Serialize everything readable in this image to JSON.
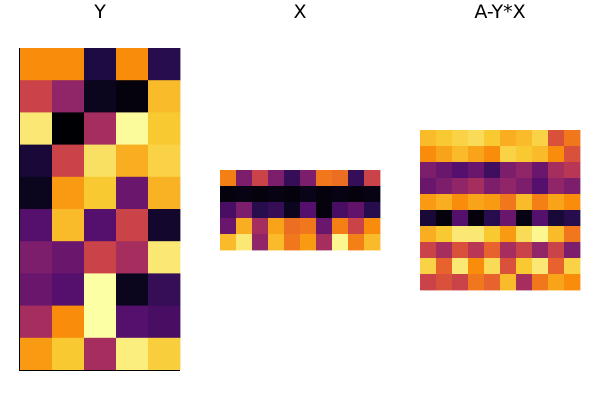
{
  "chart_data": [
    {
      "type": "heatmap",
      "title": "Y",
      "colormap": "inferno",
      "rows": 10,
      "cols": 5,
      "values": [
        [
          0.75,
          0.75,
          0.12,
          0.75,
          0.15
        ],
        [
          0.55,
          0.4,
          0.05,
          0.02,
          0.85
        ],
        [
          0.95,
          0.0,
          0.45,
          0.99,
          0.88
        ],
        [
          0.1,
          0.55,
          0.93,
          0.82,
          0.9
        ],
        [
          0.05,
          0.78,
          0.88,
          0.3,
          0.83
        ],
        [
          0.25,
          0.85,
          0.25,
          0.55,
          0.08
        ],
        [
          0.35,
          0.3,
          0.55,
          0.45,
          0.95
        ],
        [
          0.3,
          0.25,
          1.0,
          0.05,
          0.18
        ],
        [
          0.45,
          0.75,
          1.0,
          0.25,
          0.22
        ],
        [
          0.78,
          0.88,
          0.45,
          0.96,
          0.89
        ]
      ]
    },
    {
      "type": "heatmap",
      "title": "X",
      "colormap": "inferno",
      "rows": 5,
      "cols": 10,
      "values": [
        [
          0.72,
          0.35,
          0.55,
          0.35,
          0.18,
          0.35,
          0.7,
          0.68,
          0.18,
          0.55
        ],
        [
          0.02,
          0.03,
          0.02,
          0.03,
          0.02,
          0.04,
          0.02,
          0.03,
          0.02,
          0.03
        ],
        [
          0.22,
          0.35,
          0.15,
          0.18,
          0.05,
          0.25,
          0.02,
          0.22,
          0.28,
          0.15
        ],
        [
          0.3,
          0.82,
          0.45,
          0.8,
          0.68,
          0.7,
          0.3,
          0.72,
          0.55,
          0.75
        ],
        [
          0.85,
          0.95,
          0.4,
          0.85,
          0.7,
          0.78,
          0.45,
          0.98,
          0.72,
          0.85
        ]
      ]
    },
    {
      "type": "heatmap",
      "title": "A-Y*X",
      "colormap": "inferno",
      "rows": 10,
      "cols": 10,
      "values": [
        [
          0.85,
          0.88,
          0.9,
          0.92,
          0.88,
          0.82,
          0.85,
          0.9,
          0.6,
          0.7
        ],
        [
          0.75,
          0.8,
          0.85,
          0.8,
          0.75,
          0.9,
          0.88,
          0.85,
          0.75,
          0.6
        ],
        [
          0.35,
          0.3,
          0.25,
          0.3,
          0.2,
          0.35,
          0.4,
          0.3,
          0.45,
          0.5
        ],
        [
          0.3,
          0.35,
          0.4,
          0.45,
          0.35,
          0.4,
          0.35,
          0.25,
          0.4,
          0.35
        ],
        [
          0.78,
          0.82,
          0.75,
          0.8,
          0.78,
          0.7,
          0.85,
          0.72,
          0.8,
          0.75
        ],
        [
          0.1,
          0.02,
          0.25,
          0.02,
          0.15,
          0.3,
          0.03,
          0.25,
          0.1,
          0.15
        ],
        [
          0.82,
          0.88,
          0.95,
          0.95,
          0.88,
          0.78,
          0.92,
          0.98,
          0.85,
          0.7
        ],
        [
          0.55,
          0.45,
          0.6,
          0.5,
          0.65,
          0.45,
          0.55,
          0.4,
          0.55,
          0.35
        ],
        [
          0.9,
          0.65,
          0.95,
          0.75,
          0.92,
          0.6,
          0.88,
          0.95,
          0.65,
          0.9
        ],
        [
          0.55,
          0.6,
          0.55,
          0.7,
          0.65,
          0.85,
          0.45,
          0.7,
          0.8,
          0.75
        ]
      ]
    }
  ]
}
